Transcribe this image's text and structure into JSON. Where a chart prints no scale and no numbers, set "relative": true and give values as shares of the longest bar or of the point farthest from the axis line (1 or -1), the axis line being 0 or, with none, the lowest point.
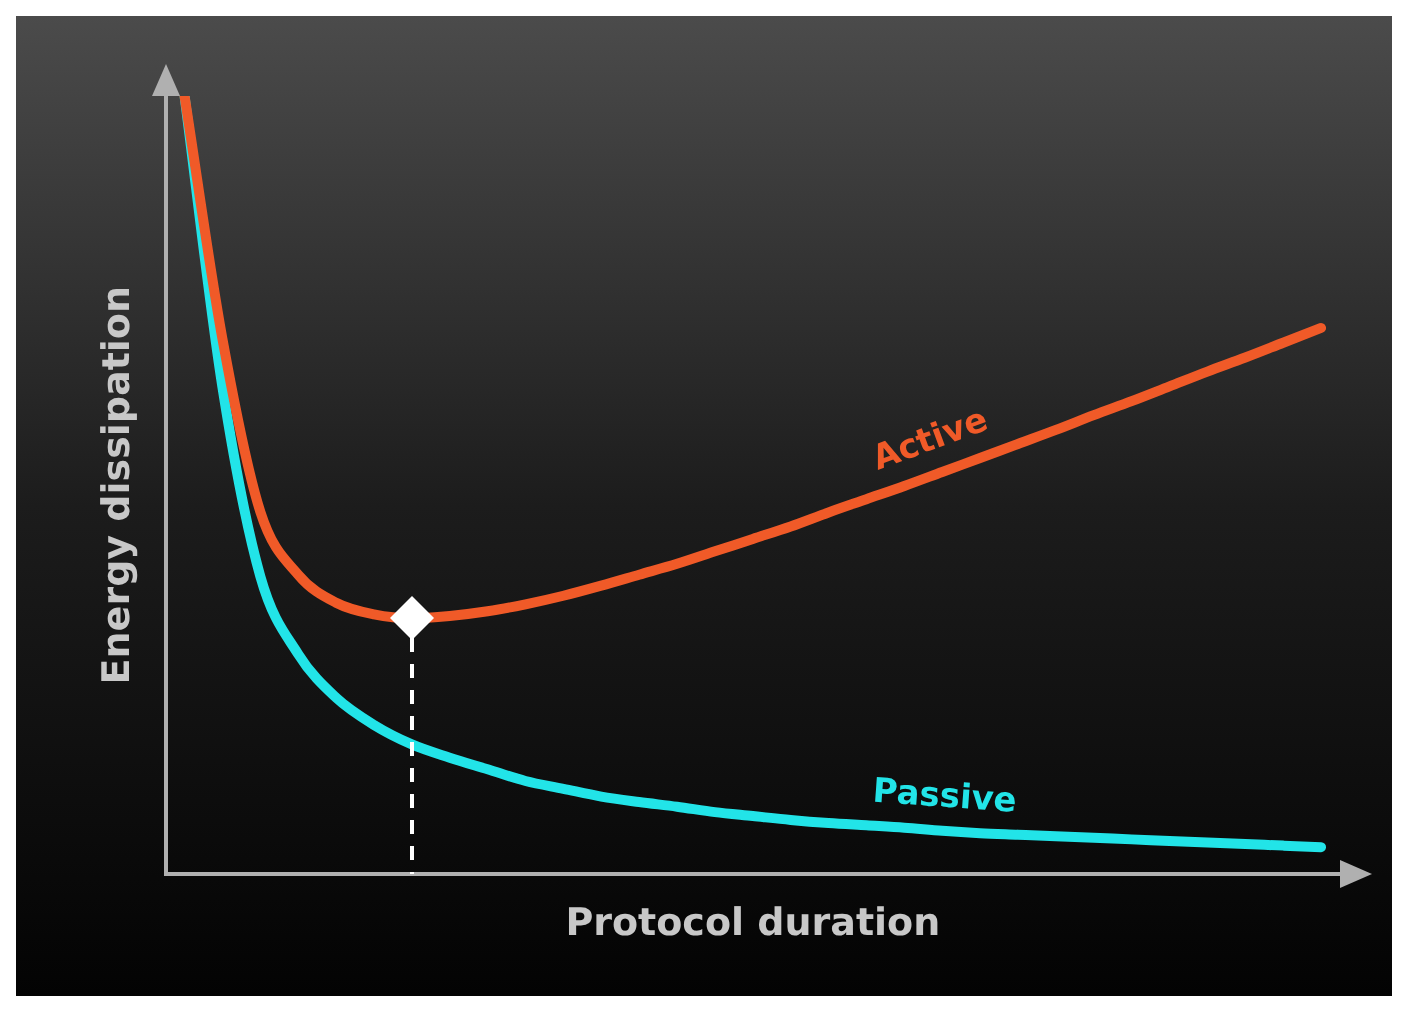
{
  "chart_data": {
    "type": "line",
    "xlabel": "Protocol duration",
    "ylabel": "Energy dissipation",
    "relative": true,
    "grid": false,
    "legend": false,
    "tick_labels": false,
    "marker": "none",
    "line_style": "solid",
    "categories": [
      null,
      null,
      null,
      null,
      null,
      null,
      null,
      null,
      null,
      null,
      null,
      null,
      null,
      null,
      null,
      null,
      null,
      null,
      null,
      null,
      null,
      null,
      null,
      null,
      null,
      null,
      null,
      null,
      null,
      null,
      null
    ],
    "series": [
      {
        "name": "Active",
        "color": "#f05a28",
        "values": [
          1,
          0.688,
          0.466,
          0.385,
          0.349,
          0.334,
          0.329,
          0.332,
          0.338,
          0.347,
          0.358,
          0.371,
          0.385,
          0.399,
          0.415,
          0.431,
          0.447,
          0.465,
          0.482,
          0.499,
          0.517,
          0.535,
          0.553,
          0.571,
          0.59,
          0.608,
          0.627,
          0.646,
          0.664,
          0.683,
          0.702
        ]
      },
      {
        "name": "Passive",
        "color": "#22e4e8",
        "values": [
          1,
          0.626,
          0.383,
          0.283,
          0.227,
          0.192,
          0.167,
          0.15,
          0.135,
          0.12,
          0.11,
          0.1,
          0.093,
          0.087,
          0.08,
          0.075,
          0.07,
          0.066,
          0.063,
          0.06,
          0.056,
          0.053,
          0.051,
          0.049,
          0.047,
          0.045,
          0.043,
          0.041,
          0.039,
          0.037,
          0.035
        ]
      }
    ]
  }
}
